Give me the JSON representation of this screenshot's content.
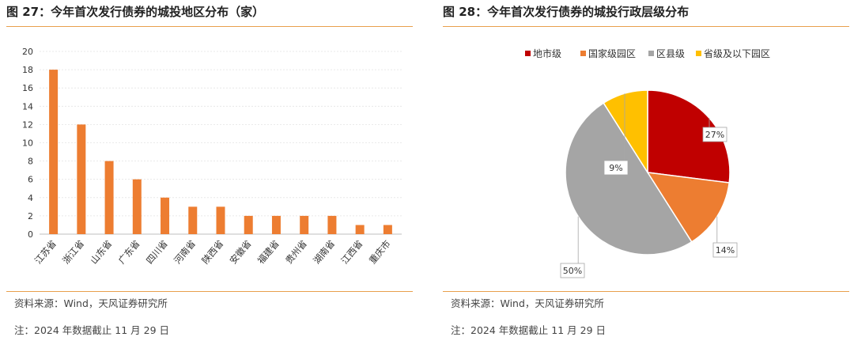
{
  "left_panel": {
    "title": "图 27：今年首次发行债券的城投地区分布（家）",
    "source": "资料来源：Wind，天风证券研究所",
    "note": "注：2024 年数据截止 11 月 29 日"
  },
  "right_panel": {
    "title": "图 28：今年首次发行债券的城投行政层级分布",
    "source": "资料来源：Wind，天风证券研究所",
    "note": "注：2024 年数据截止 11 月 29 日"
  },
  "chart_data": [
    {
      "type": "bar",
      "categories": [
        "江苏省",
        "浙江省",
        "山东省",
        "广东省",
        "四川省",
        "河南省",
        "陕西省",
        "安徽省",
        "福建省",
        "贵州省",
        "湖南省",
        "江西省",
        "重庆市"
      ],
      "values": [
        18,
        12,
        8,
        6,
        4,
        3,
        3,
        2,
        2,
        2,
        2,
        1,
        1
      ],
      "ylim": [
        0,
        20
      ],
      "yticks": [
        "0",
        "2",
        "4",
        "6",
        "8",
        "10",
        "12",
        "14",
        "16",
        "18",
        "20"
      ],
      "grid": true,
      "color": "#ed7d31"
    },
    {
      "type": "pie",
      "labels": [
        "地市级",
        "国家级园区",
        "区县级",
        "省级及以下园区"
      ],
      "values": [
        27,
        14,
        50,
        9
      ],
      "data_labels": [
        "27%",
        "14%",
        "50%",
        "9%"
      ],
      "colors": [
        "#c00000",
        "#ed7d31",
        "#a5a5a5",
        "#ffc000"
      ],
      "legend_position": "top"
    }
  ]
}
